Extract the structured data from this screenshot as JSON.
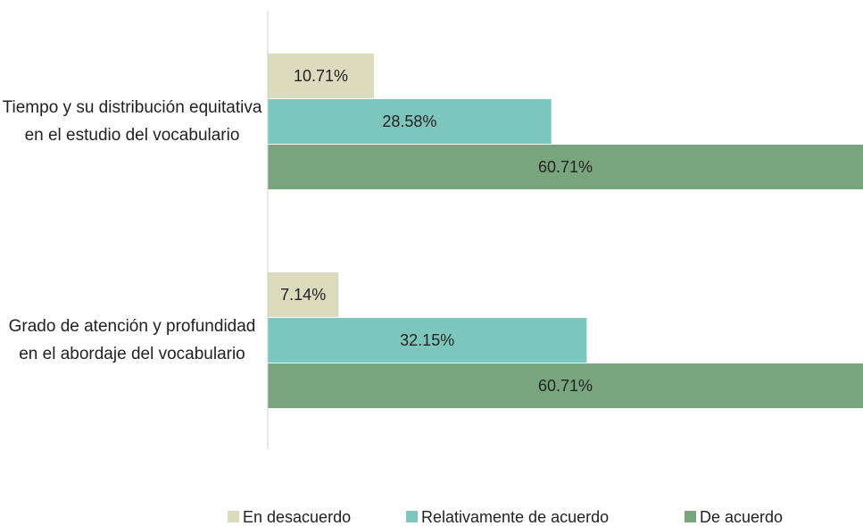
{
  "chart_data": {
    "type": "bar",
    "orientation": "horizontal",
    "categories": [
      "Tiempo y su distribución equitativa en el estudio del vocabulario",
      "Grado de atención y profundidad en el abordaje del vocabulario"
    ],
    "series": [
      {
        "name": "En desacuerdo",
        "color": "#dcdbbd",
        "values": [
          10.71,
          7.14
        ],
        "value_labels": [
          "10.71%",
          "7.14%"
        ]
      },
      {
        "name": "Relativamente de acuerdo",
        "color": "#7dc6bd",
        "values": [
          28.58,
          32.15
        ],
        "value_labels": [
          "28.58%",
          "32.15%"
        ]
      },
      {
        "name": "De acuerdo",
        "color": "#79a57e",
        "values": [
          60.71,
          60.71
        ],
        "value_labels": [
          "60.71%",
          "60.71%"
        ]
      }
    ],
    "xlim": [
      0,
      60
    ],
    "legend": "bottom"
  }
}
